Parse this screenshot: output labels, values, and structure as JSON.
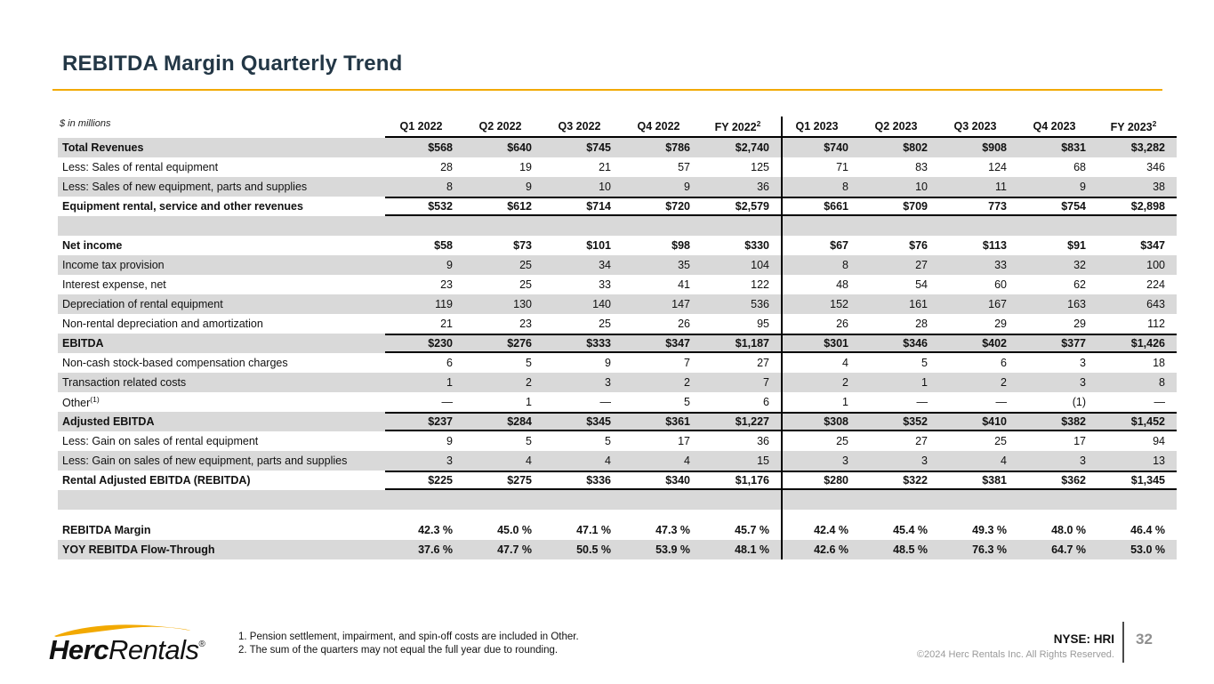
{
  "slide": {
    "title": "REBITDA Margin Quarterly Trend",
    "accent_color": "#F2A900",
    "title_color": "#233746",
    "stripe_color": "#D9D9D9"
  },
  "table": {
    "units_note": "$ in millions",
    "columns": [
      {
        "label": "Q1 2022"
      },
      {
        "label": "Q2 2022"
      },
      {
        "label": "Q3 2022"
      },
      {
        "label": "Q4 2022"
      },
      {
        "label": "FY 2022",
        "sup": "2"
      },
      {
        "label": "Q1 2023"
      },
      {
        "label": "Q2 2023"
      },
      {
        "label": "Q3 2023"
      },
      {
        "label": "Q4 2023"
      },
      {
        "label": "FY 2023",
        "sup": "2"
      }
    ],
    "rows": [
      {
        "label": "Total Revenues",
        "bold": true,
        "stripe": true,
        "values": [
          "$568",
          "$640",
          "$745",
          "$786",
          "$2,740",
          "$740",
          "$802",
          "$908",
          "$831",
          "$3,282"
        ]
      },
      {
        "label": "Less: Sales of rental equipment",
        "values": [
          "28",
          "19",
          "21",
          "57",
          "125",
          "71",
          "83",
          "124",
          "68",
          "346"
        ]
      },
      {
        "label": "Less: Sales of new equipment, parts and supplies",
        "stripe": true,
        "values": [
          "8",
          "9",
          "10",
          "9",
          "36",
          "8",
          "10",
          "11",
          "9",
          "38"
        ]
      },
      {
        "label": "Equipment rental, service and other revenues",
        "bold": true,
        "border_top": true,
        "border_bottom": true,
        "values": [
          "$532",
          "$612",
          "$714",
          "$720",
          "$2,579",
          "$661",
          "$709",
          "773",
          "$754",
          "$2,898"
        ]
      },
      {
        "spacer": true,
        "stripe": true
      },
      {
        "label": "Net income",
        "bold": true,
        "values": [
          "$58",
          "$73",
          "$101",
          "$98",
          "$330",
          "$67",
          "$76",
          "$113",
          "$91",
          "$347"
        ]
      },
      {
        "label": "Income tax provision",
        "stripe": true,
        "values": [
          "9",
          "25",
          "34",
          "35",
          "104",
          "8",
          "27",
          "33",
          "32",
          "100"
        ]
      },
      {
        "label": "Interest expense, net",
        "values": [
          "23",
          "25",
          "33",
          "41",
          "122",
          "48",
          "54",
          "60",
          "62",
          "224"
        ]
      },
      {
        "label": "Depreciation of rental equipment",
        "stripe": true,
        "values": [
          "119",
          "130",
          "140",
          "147",
          "536",
          "152",
          "161",
          "167",
          "163",
          "643"
        ]
      },
      {
        "label": "Non-rental depreciation and amortization",
        "values": [
          "21",
          "23",
          "25",
          "26",
          "95",
          "26",
          "28",
          "29",
          "29",
          "112"
        ]
      },
      {
        "label": "EBITDA",
        "bold": true,
        "stripe": true,
        "border_top": true,
        "border_bottom": true,
        "values": [
          "$230",
          "$276",
          "$333",
          "$347",
          "$1,187",
          "$301",
          "$346",
          "$402",
          "$377",
          "$1,426"
        ]
      },
      {
        "label": "Non-cash stock-based compensation charges",
        "values": [
          "6",
          "5",
          "9",
          "7",
          "27",
          "4",
          "5",
          "6",
          "3",
          "18"
        ]
      },
      {
        "label": "Transaction related costs",
        "stripe": true,
        "values": [
          "1",
          "2",
          "3",
          "2",
          "7",
          "2",
          "1",
          "2",
          "3",
          "8"
        ]
      },
      {
        "label": "Other",
        "label_sup": "(1)",
        "values": [
          "—",
          "1",
          "—",
          "5",
          "6",
          "1",
          "—",
          "—",
          "(1)",
          "—"
        ]
      },
      {
        "label": "Adjusted EBITDA",
        "bold": true,
        "stripe": true,
        "border_top": true,
        "border_bottom": true,
        "values": [
          "$237",
          "$284",
          "$345",
          "$361",
          "$1,227",
          "$308",
          "$352",
          "$410",
          "$382",
          "$1,452"
        ]
      },
      {
        "label": "Less: Gain on sales of rental equipment",
        "values": [
          "9",
          "5",
          "5",
          "17",
          "36",
          "25",
          "27",
          "25",
          "17",
          "94"
        ]
      },
      {
        "label": "Less: Gain on sales of new equipment, parts and supplies",
        "stripe": true,
        "values": [
          "3",
          "4",
          "4",
          "4",
          "15",
          "3",
          "3",
          "4",
          "3",
          "13"
        ]
      },
      {
        "label": "Rental Adjusted EBITDA (REBITDA)",
        "bold": true,
        "border_top": true,
        "border_bottom": true,
        "values": [
          "$225",
          "$275",
          "$336",
          "$340",
          "$1,176",
          "$280",
          "$322",
          "$381",
          "$362",
          "$1,345"
        ]
      },
      {
        "spacer": true,
        "stripe": true
      },
      {
        "spacer": true,
        "thin": true
      },
      {
        "label": "REBITDA Margin",
        "bold": true,
        "values": [
          "42.3 %",
          "45.0 %",
          "47.1 %",
          "47.3 %",
          "45.7 %",
          "42.4 %",
          "45.4 %",
          "49.3 %",
          "48.0 %",
          "46.4 %"
        ]
      },
      {
        "label": "YOY REBITDA Flow-Through",
        "bold": true,
        "stripe": true,
        "values": [
          "37.6 %",
          "47.7 %",
          "50.5 %",
          "53.9 %",
          "48.1 %",
          "42.6 %",
          "48.5 %",
          "76.3 %",
          "64.7 %",
          "53.0 %"
        ]
      }
    ]
  },
  "footnotes": [
    "1. Pension settlement, impairment, and spin-off costs are included in Other.",
    "2. The sum of the quarters may not equal the full year due to rounding."
  ],
  "footer": {
    "logo_primary": "Herc",
    "logo_secondary": "Rentals",
    "logo_reg": "®",
    "ticker": "NYSE: HRI",
    "copyright": "©2024 Herc Rentals Inc.  All Rights Reserved.",
    "page_number": "32"
  }
}
